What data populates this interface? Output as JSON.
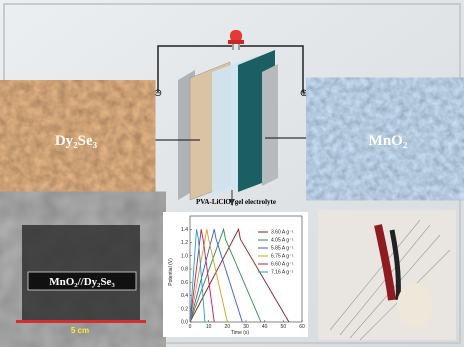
{
  "left_image": {
    "label": "Dy₂Se₃"
  },
  "right_image": {
    "label": "MnO₂"
  },
  "terminals": {
    "negative": "⊖",
    "positive": "⊕"
  },
  "device_photo": {
    "label": "MnO₂//Dy₂Se₃",
    "scale": "5 cm"
  },
  "chart_data": {
    "type": "line",
    "title": "PVA-LiClO₄ gel electrolyte",
    "x_label": "Time (s)",
    "y_label": "Potential (V)",
    "xlim": [
      0,
      60
    ],
    "ylim": [
      0,
      1.6
    ],
    "xticks": [
      0,
      10,
      20,
      30,
      40,
      50,
      60
    ],
    "yticks": [
      {
        "value": 0,
        "label": "0.0"
      },
      {
        "value": 0.2,
        "label": "0.2"
      },
      {
        "value": 0.4,
        "label": "0.4"
      },
      {
        "value": 0.6,
        "label": "0.6"
      },
      {
        "value": 0.8,
        "label": "0.8"
      },
      {
        "value": 1.0,
        "label": "1.0"
      },
      {
        "value": 1.2,
        "label": "1.2"
      },
      {
        "value": 1.4,
        "label": "1.4"
      }
    ],
    "series": [
      {
        "name": "3.60 A g⁻¹",
        "color": "#8b1c1c",
        "x": [
          0,
          26,
          27,
          53
        ],
        "values": [
          0,
          1.4,
          1.25,
          0
        ]
      },
      {
        "name": "4.05 A g⁻¹",
        "color": "#2e8b57",
        "x": [
          0,
          18,
          19,
          38
        ],
        "values": [
          0,
          1.4,
          1.25,
          0
        ]
      },
      {
        "name": "5.85 A g⁻¹",
        "color": "#3b5bdb",
        "x": [
          0,
          13,
          14,
          28
        ],
        "values": [
          0,
          1.4,
          1.25,
          0
        ]
      },
      {
        "name": "6.75 A g⁻¹",
        "color": "#d4a017",
        "x": [
          0,
          9,
          10,
          20
        ],
        "values": [
          0,
          1.4,
          1.25,
          0
        ]
      },
      {
        "name": "6.60 A g⁻¹",
        "color": "#c2185b",
        "x": [
          0,
          6,
          7,
          13
        ],
        "values": [
          0,
          1.4,
          1.25,
          0
        ]
      },
      {
        "name": "7.16 A g⁻¹",
        "color": "#1fa2c8",
        "x": [
          0,
          3.5,
          4.5,
          8
        ],
        "values": [
          0,
          1.4,
          1.25,
          0
        ]
      }
    ]
  }
}
